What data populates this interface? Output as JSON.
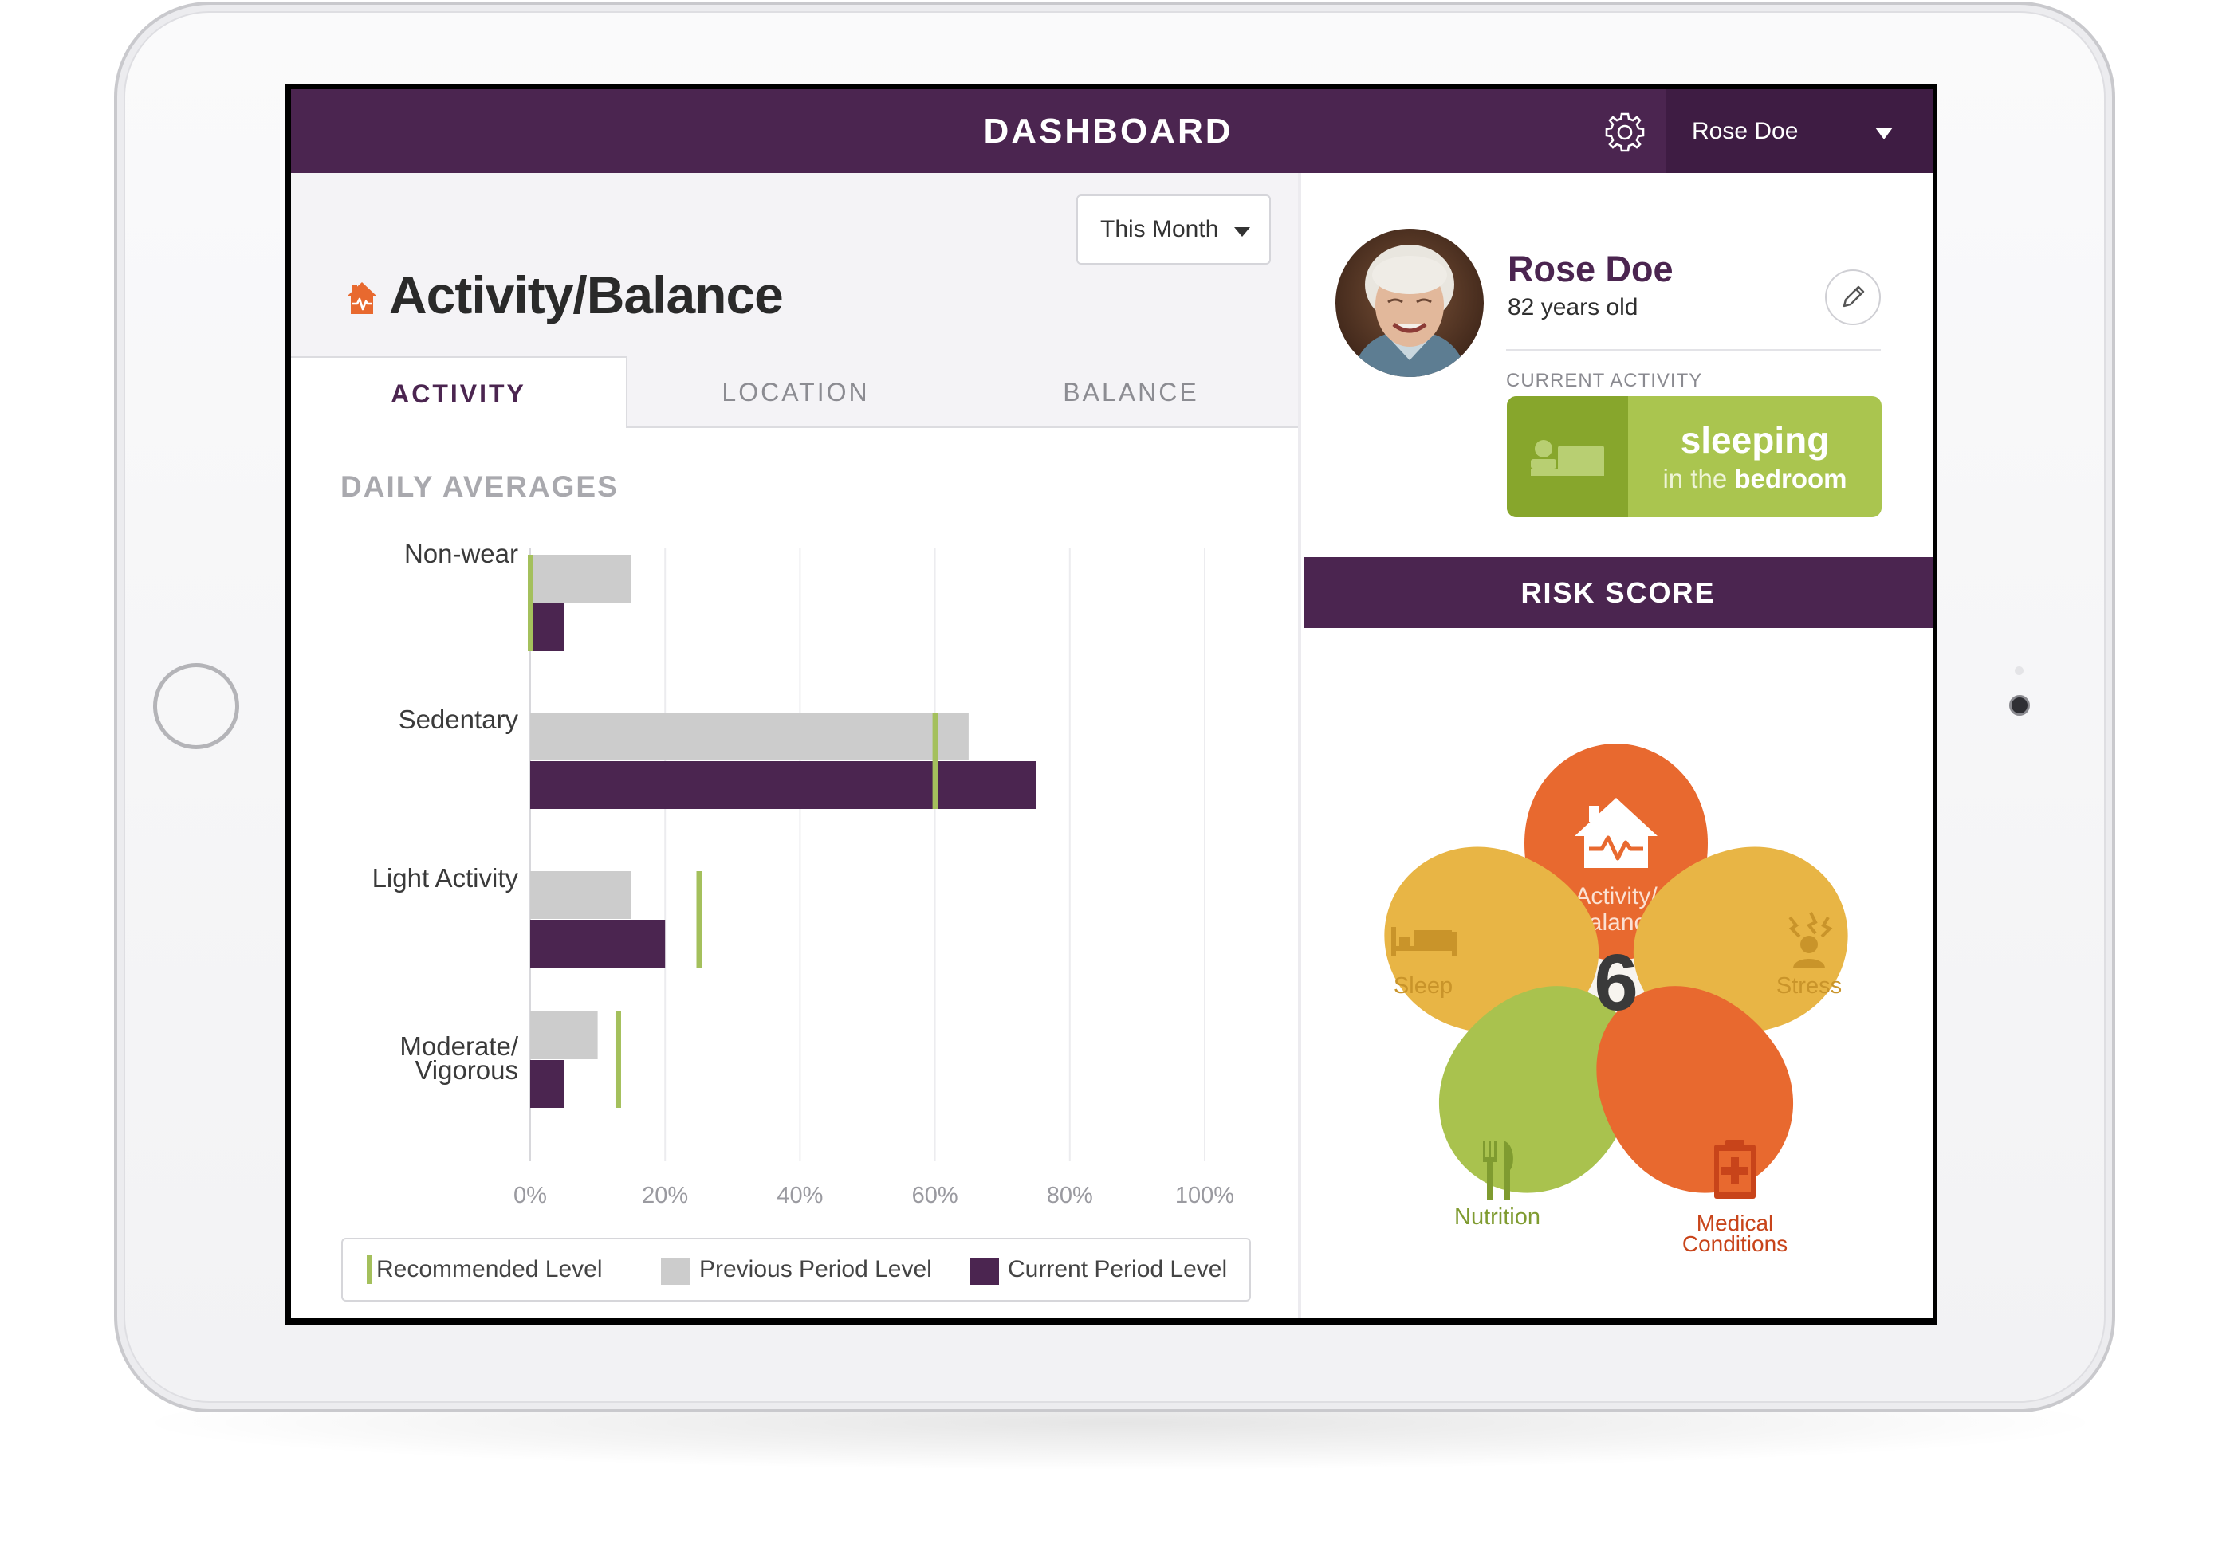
{
  "header": {
    "title": "DASHBOARD",
    "user_name": "Rose Doe",
    "settings_icon": "gear-icon",
    "dropdown_icon": "caret-down-icon"
  },
  "activity_panel": {
    "period_selector": "This Month",
    "title": "Activity/Balance",
    "title_icon": "house-heartbeat-icon",
    "tabs": [
      {
        "label": "ACTIVITY",
        "active": true
      },
      {
        "label": "LOCATION",
        "active": false
      },
      {
        "label": "BALANCE",
        "active": false
      }
    ],
    "chart_heading": "DAILY AVERAGES"
  },
  "chart_data": {
    "type": "bar",
    "orientation": "horizontal",
    "categories": [
      [
        "Non-wear"
      ],
      [
        "Sedentary"
      ],
      [
        "Light Activity"
      ],
      [
        "Moderate/",
        "Vigorous"
      ]
    ],
    "series": [
      {
        "name": "Previous Period Level",
        "color": "#cccccc",
        "values": [
          15,
          65,
          15,
          10
        ]
      },
      {
        "name": "Current Period Level",
        "color": "#4b2550",
        "values": [
          5,
          75,
          20,
          5
        ]
      }
    ],
    "recommended": {
      "name": "Recommended Level",
      "color": "#a4c05c",
      "values": [
        0,
        60,
        25,
        13
      ]
    },
    "xlim": [
      0,
      100
    ],
    "xticks": [
      "0%",
      "20%",
      "40%",
      "60%",
      "80%",
      "100%"
    ],
    "grid": true,
    "legend_position": "bottom"
  },
  "legend": {
    "recommended": "Recommended Level",
    "previous": "Previous Period Level",
    "current": "Current Period Level"
  },
  "profile": {
    "name": "Rose Doe",
    "age": "82 years old",
    "current_activity_label": "CURRENT ACTIVITY",
    "activity": "sleeping",
    "location_prefix": "in the",
    "location": "bedroom",
    "activity_icon": "bed-icon",
    "edit_icon": "pencil-icon"
  },
  "risk": {
    "title": "RISK SCORE",
    "score": "6",
    "petals": [
      {
        "label": [
          "Activity/",
          "Balance"
        ],
        "color": "#e8692f",
        "icon": "house-heartbeat-icon"
      },
      {
        "label": [
          "Sleep"
        ],
        "color": "#e8b545",
        "icon": "bed-icon"
      },
      {
        "label": [
          "Stress"
        ],
        "color": "#e8b545",
        "icon": "stress-icon"
      },
      {
        "label": [
          "Nutrition"
        ],
        "color": "#a9c24e",
        "icon": "fork-knife-icon"
      },
      {
        "label": [
          "Medical",
          "Conditions"
        ],
        "color": "#e8692f",
        "icon": "medical-clipboard-icon"
      }
    ]
  }
}
